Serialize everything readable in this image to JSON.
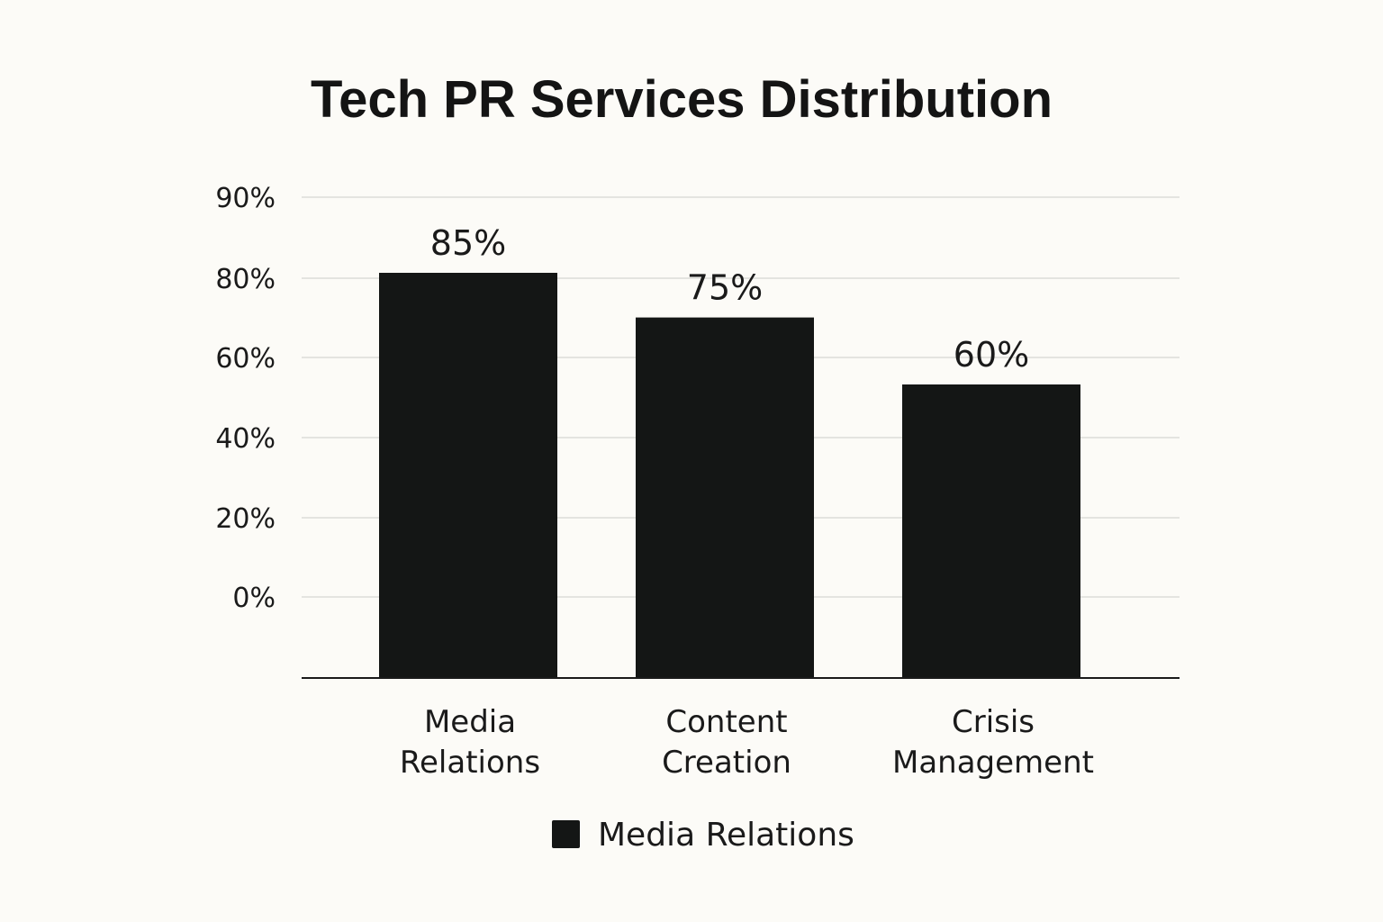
{
  "chart_data": {
    "type": "bar",
    "title": "Tech PR Services Distribution",
    "categories": [
      "Media Relations",
      "Content Creation",
      "Crisis Management"
    ],
    "category_lines": [
      [
        "Media",
        "Relations"
      ],
      [
        "Content",
        "Creation"
      ],
      [
        "Crisis",
        "Management"
      ]
    ],
    "series": [
      {
        "name": "Media Relations",
        "values": [
          85,
          75,
          60
        ]
      }
    ],
    "data_labels": [
      "85%",
      "75%",
      "60%"
    ],
    "y_ticks": [
      0,
      20,
      40,
      60,
      80,
      90
    ],
    "y_tick_labels": [
      "0%",
      "20%",
      "40%",
      "60%",
      "80%",
      "90%"
    ],
    "xlabel": "",
    "ylabel": "",
    "grid": true,
    "legend": {
      "position": "bottom-center",
      "entries": [
        "Media Relations"
      ]
    },
    "colors": {
      "bar": "#141615",
      "grid": "#dcddd8",
      "axis": "#1a1a1a",
      "background": "#fcfbf7"
    }
  }
}
